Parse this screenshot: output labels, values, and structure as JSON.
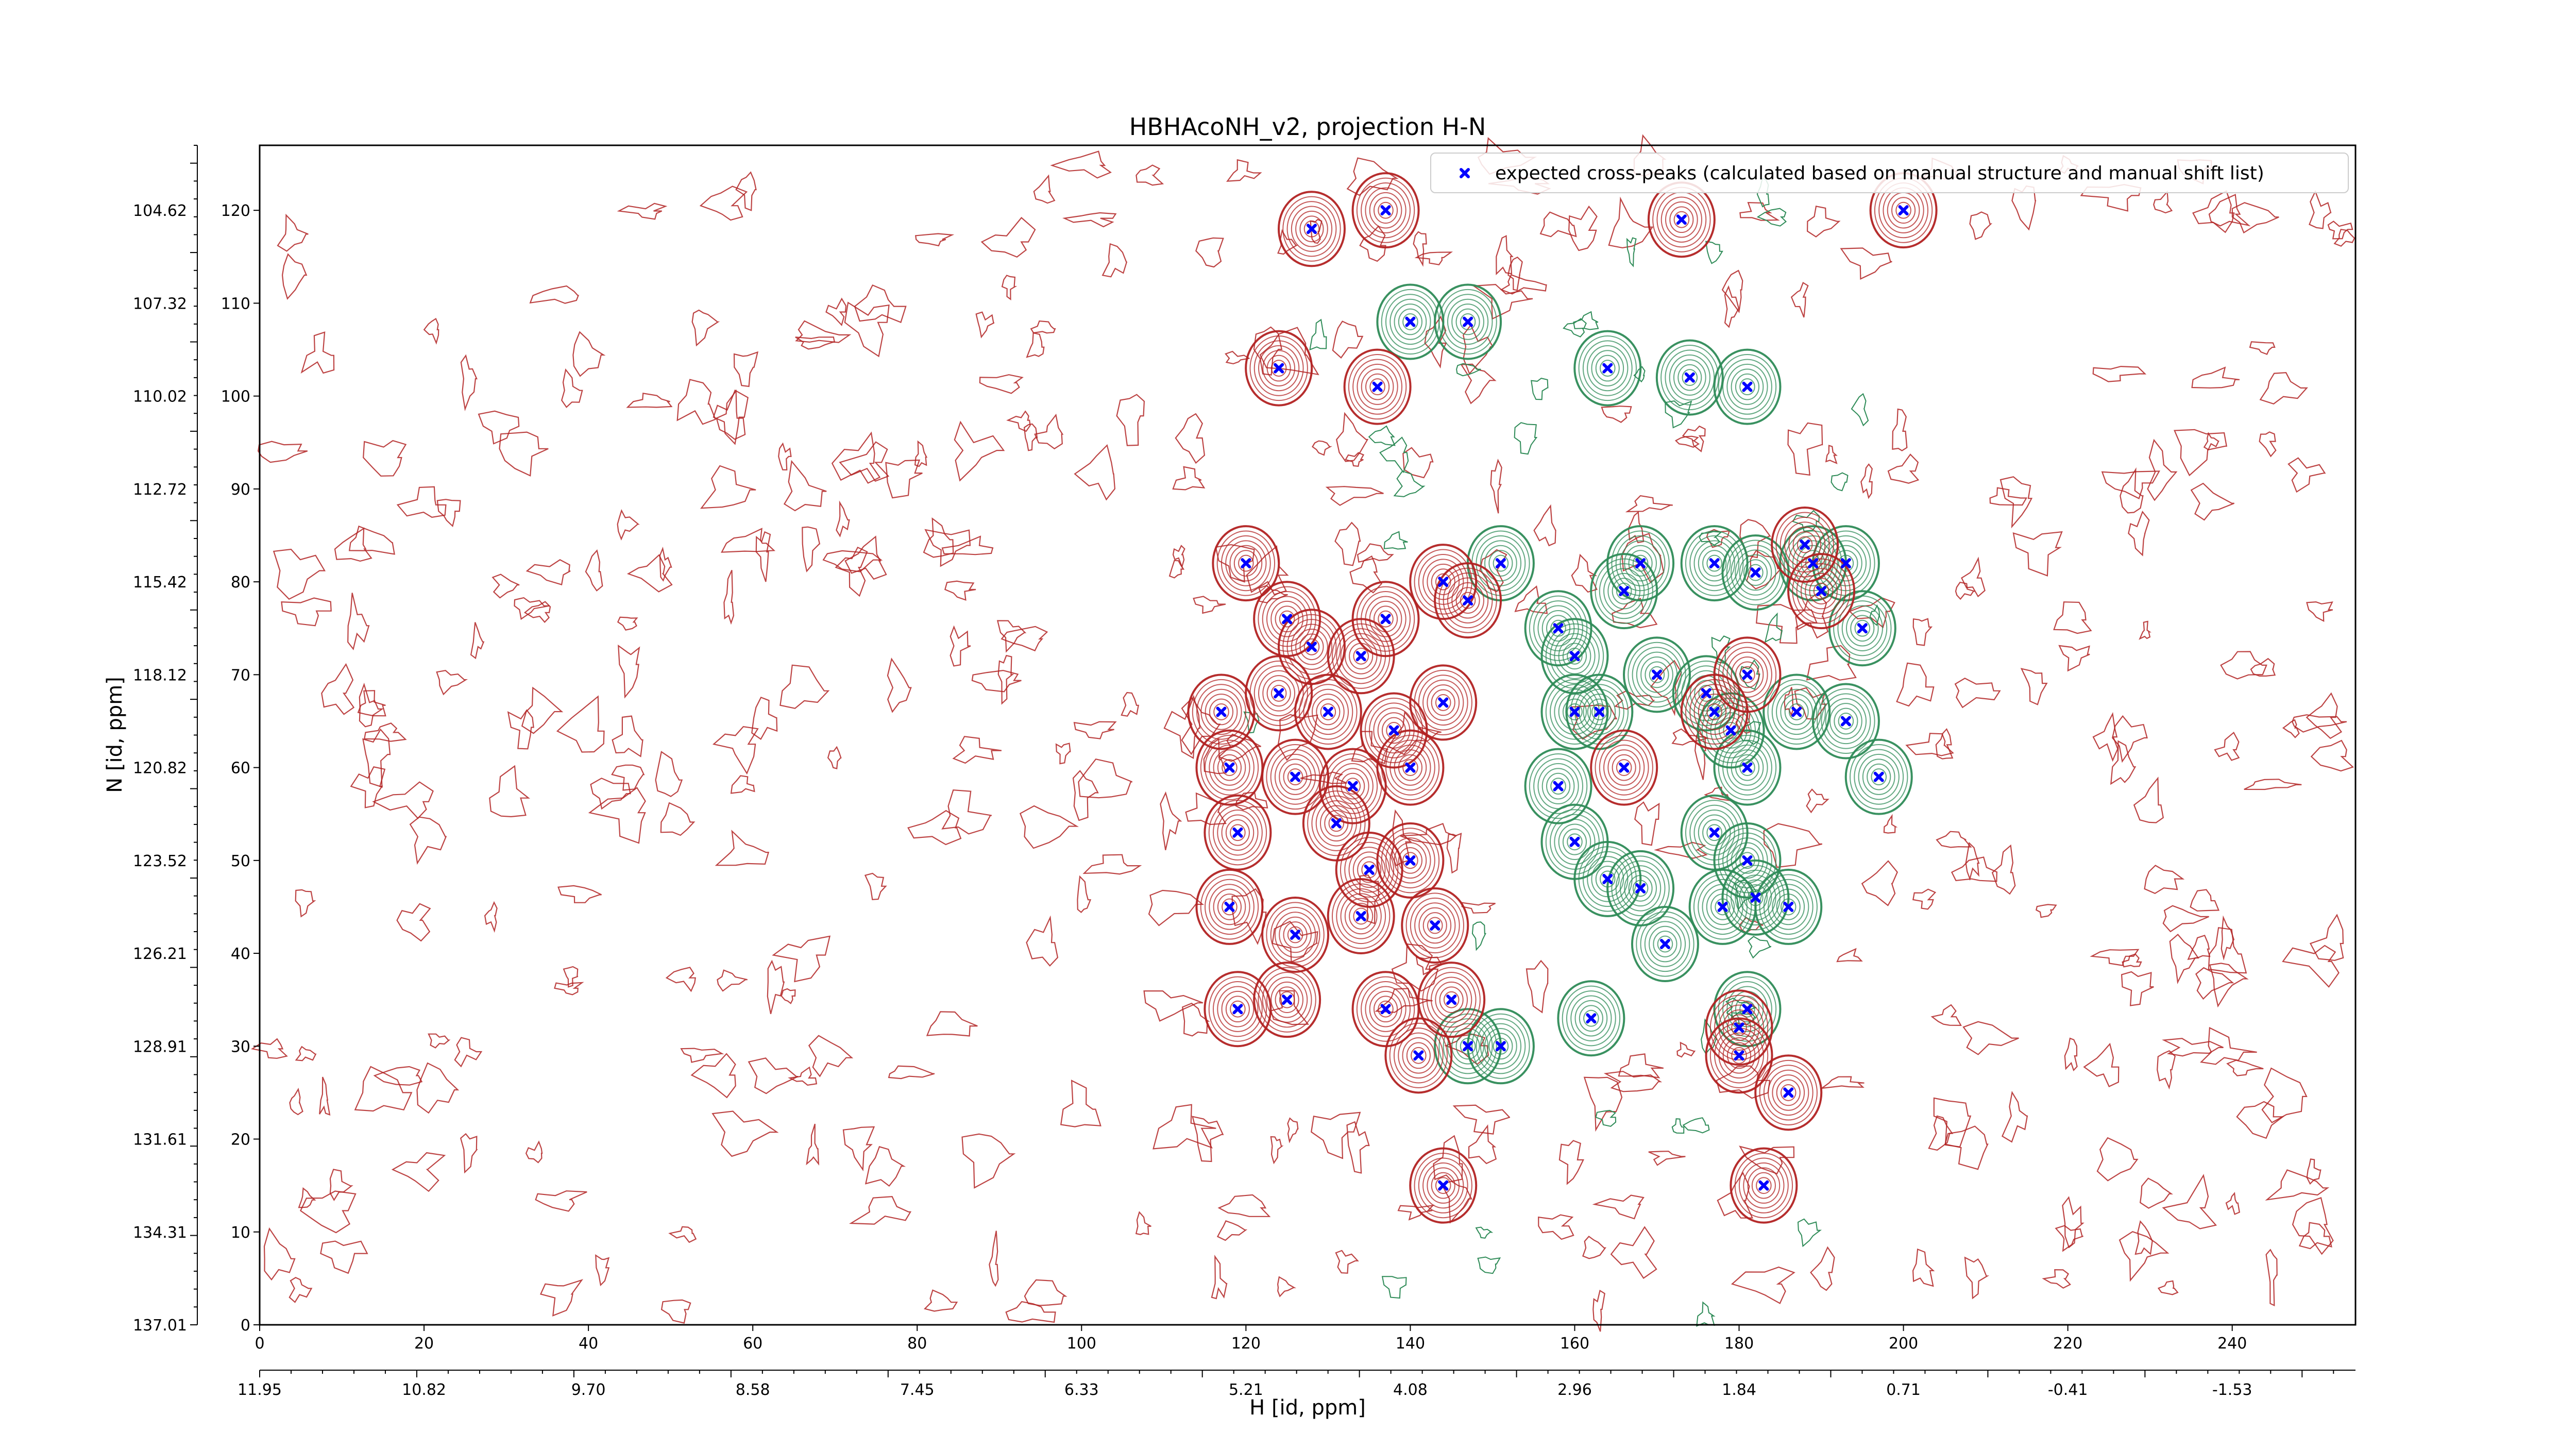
{
  "chart_data": {
    "type": "contour",
    "title": "HBHAcoNH_v2, projection H-N",
    "xlabel_index": "",
    "ylabel": "N [id, ppm]",
    "xlabel": "H [id, ppm]",
    "x_index_range": [
      0,
      255
    ],
    "y_index_range": [
      0,
      127
    ],
    "x_index_ticks": [
      "0",
      "20",
      "40",
      "60",
      "80",
      "100",
      "120",
      "140",
      "160",
      "180",
      "200",
      "220",
      "240"
    ],
    "y_index_ticks": [
      "0",
      "10",
      "20",
      "30",
      "40",
      "50",
      "60",
      "70",
      "80",
      "90",
      "100",
      "110",
      "120"
    ],
    "x_ppm_ticks": [
      "11.95",
      "10.82",
      "9.70",
      "8.58",
      "7.45",
      "6.33",
      "5.21",
      "4.08",
      "2.96",
      "1.84",
      "0.71",
      "-0.41",
      "-1.53"
    ],
    "y_ppm_ticks": [
      "137.01",
      "134.31",
      "131.61",
      "128.91",
      "126.21",
      "123.52",
      "120.82",
      "118.12",
      "115.42",
      "112.72",
      "110.02",
      "107.32",
      "104.62"
    ],
    "legend": {
      "position": "top-right",
      "entries": [
        {
          "label": "expected cross-peaks (calculated based on manual structure and manual shift list)",
          "marker": "x",
          "color": "#0000ff"
        }
      ]
    },
    "colors": {
      "positive_contours": "#b22222",
      "negative_contours": "#2e8b57",
      "peaks": "#0000ff"
    },
    "peaks_red": [
      [
        128,
        118
      ],
      [
        137,
        120
      ],
      [
        200,
        120
      ],
      [
        124,
        103
      ],
      [
        136,
        101
      ],
      [
        120,
        82
      ],
      [
        125,
        76
      ],
      [
        137,
        76
      ],
      [
        144,
        80
      ],
      [
        147,
        78
      ],
      [
        128,
        73
      ],
      [
        134,
        72
      ],
      [
        117,
        66
      ],
      [
        124,
        68
      ],
      [
        130,
        66
      ],
      [
        138,
        64
      ],
      [
        144,
        67
      ],
      [
        118,
        60
      ],
      [
        126,
        59
      ],
      [
        133,
        58
      ],
      [
        140,
        60
      ],
      [
        119,
        53
      ],
      [
        131,
        54
      ],
      [
        135,
        49
      ],
      [
        140,
        50
      ],
      [
        118,
        45
      ],
      [
        126,
        42
      ],
      [
        134,
        44
      ],
      [
        143,
        43
      ],
      [
        119,
        34
      ],
      [
        125,
        35
      ],
      [
        137,
        34
      ],
      [
        141,
        29
      ],
      [
        145,
        35
      ],
      [
        144,
        15
      ],
      [
        166,
        60
      ],
      [
        173,
        119
      ],
      [
        183,
        15
      ],
      [
        180,
        29
      ],
      [
        180,
        32
      ],
      [
        186,
        25
      ],
      [
        190,
        79
      ],
      [
        188,
        84
      ],
      [
        181,
        70
      ],
      [
        177,
        66
      ]
    ],
    "peaks_green": [
      [
        140,
        108
      ],
      [
        147,
        108
      ],
      [
        164,
        103
      ],
      [
        174,
        102
      ],
      [
        181,
        101
      ],
      [
        168,
        82
      ],
      [
        166,
        79
      ],
      [
        177,
        82
      ],
      [
        182,
        81
      ],
      [
        189,
        82
      ],
      [
        193,
        82
      ],
      [
        151,
        82
      ],
      [
        158,
        75
      ],
      [
        160,
        72
      ],
      [
        163,
        66
      ],
      [
        170,
        70
      ],
      [
        176,
        68
      ],
      [
        179,
        64
      ],
      [
        181,
        60
      ],
      [
        187,
        66
      ],
      [
        193,
        65
      ],
      [
        197,
        59
      ],
      [
        158,
        58
      ],
      [
        160,
        52
      ],
      [
        164,
        48
      ],
      [
        168,
        47
      ],
      [
        177,
        53
      ],
      [
        181,
        50
      ],
      [
        178,
        45
      ],
      [
        182,
        46
      ],
      [
        186,
        45
      ],
      [
        171,
        41
      ],
      [
        181,
        34
      ],
      [
        147,
        30
      ],
      [
        151,
        30
      ],
      [
        162,
        33
      ],
      [
        160,
        66
      ],
      [
        195,
        75
      ]
    ],
    "noise_seed": 20240611
  }
}
